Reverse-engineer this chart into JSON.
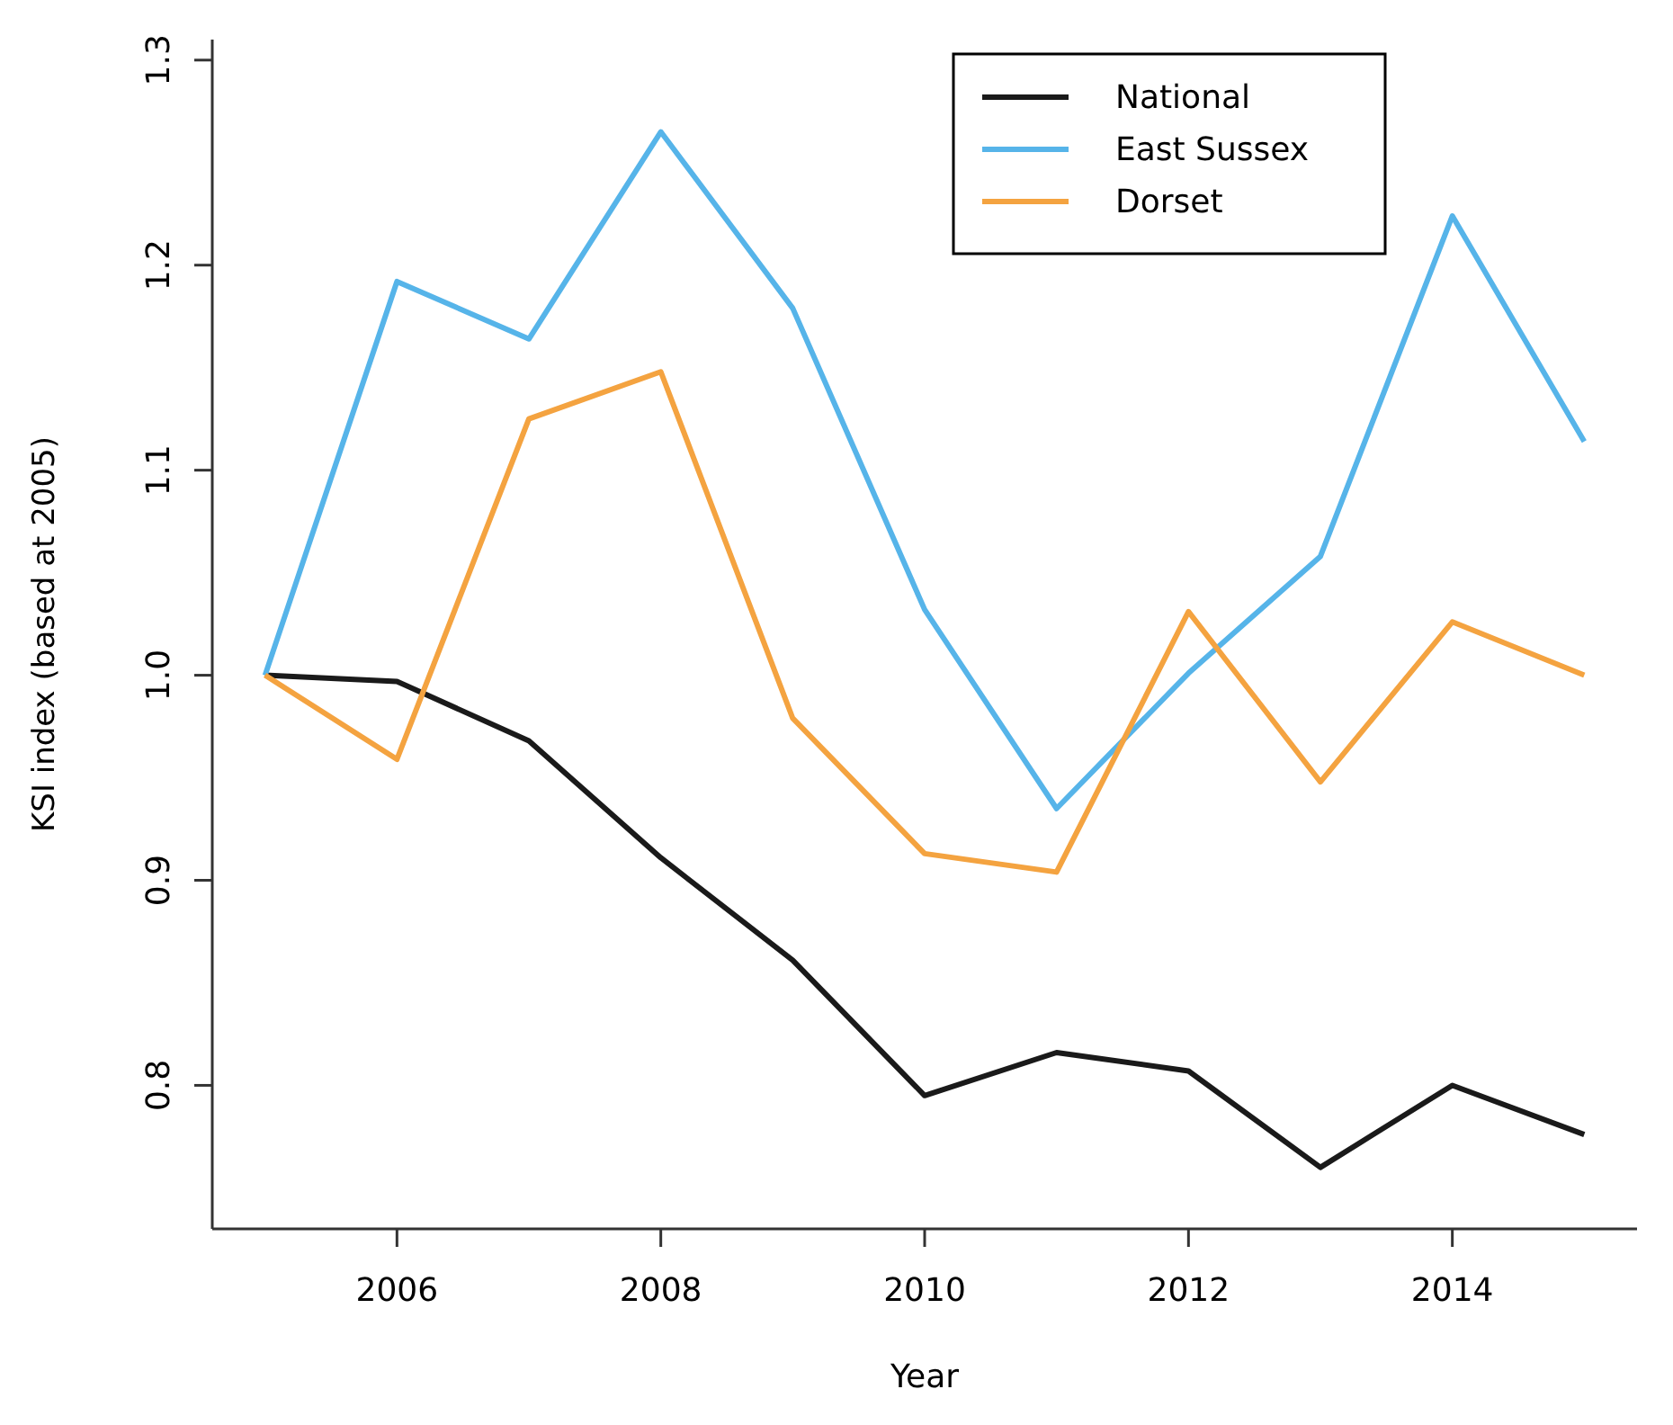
{
  "chart_data": {
    "type": "line",
    "xlabel": "Year",
    "ylabel": "KSI index (based at 2005)",
    "x": [
      2005,
      2006,
      2007,
      2008,
      2009,
      2010,
      2011,
      2012,
      2013,
      2014,
      2015
    ],
    "series": [
      {
        "name": "National",
        "color": "#1a1a1a",
        "values": [
          1.0,
          0.997,
          0.968,
          0.911,
          0.861,
          0.795,
          0.816,
          0.807,
          0.76,
          0.8,
          0.776
        ]
      },
      {
        "name": "East Sussex",
        "color": "#56b4e9",
        "values": [
          1.0,
          1.192,
          1.164,
          1.265,
          1.179,
          1.032,
          0.935,
          1.001,
          1.058,
          1.224,
          1.114
        ]
      },
      {
        "name": "Dorset",
        "color": "#f4a340",
        "values": [
          1.0,
          0.959,
          1.125,
          1.148,
          0.979,
          0.913,
          0.904,
          1.031,
          0.948,
          1.026,
          1.0
        ]
      }
    ],
    "xlim": [
      2004.6,
      2015.4
    ],
    "xticks": [
      2006,
      2008,
      2010,
      2012,
      2014
    ],
    "ylim": [
      0.73,
      1.31
    ],
    "yticks": [
      {
        "value": 0.8,
        "label": "0.8"
      },
      {
        "value": 0.9,
        "label": "0.9"
      },
      {
        "value": 1.0,
        "label": "1.0"
      },
      {
        "value": 1.1,
        "label": "1.1"
      },
      {
        "value": 1.2,
        "label": "1.2"
      },
      {
        "value": 1.3,
        "label": "1.3"
      }
    ],
    "legend": "top right",
    "grid": false,
    "line_style": "solid",
    "marker": "none"
  }
}
